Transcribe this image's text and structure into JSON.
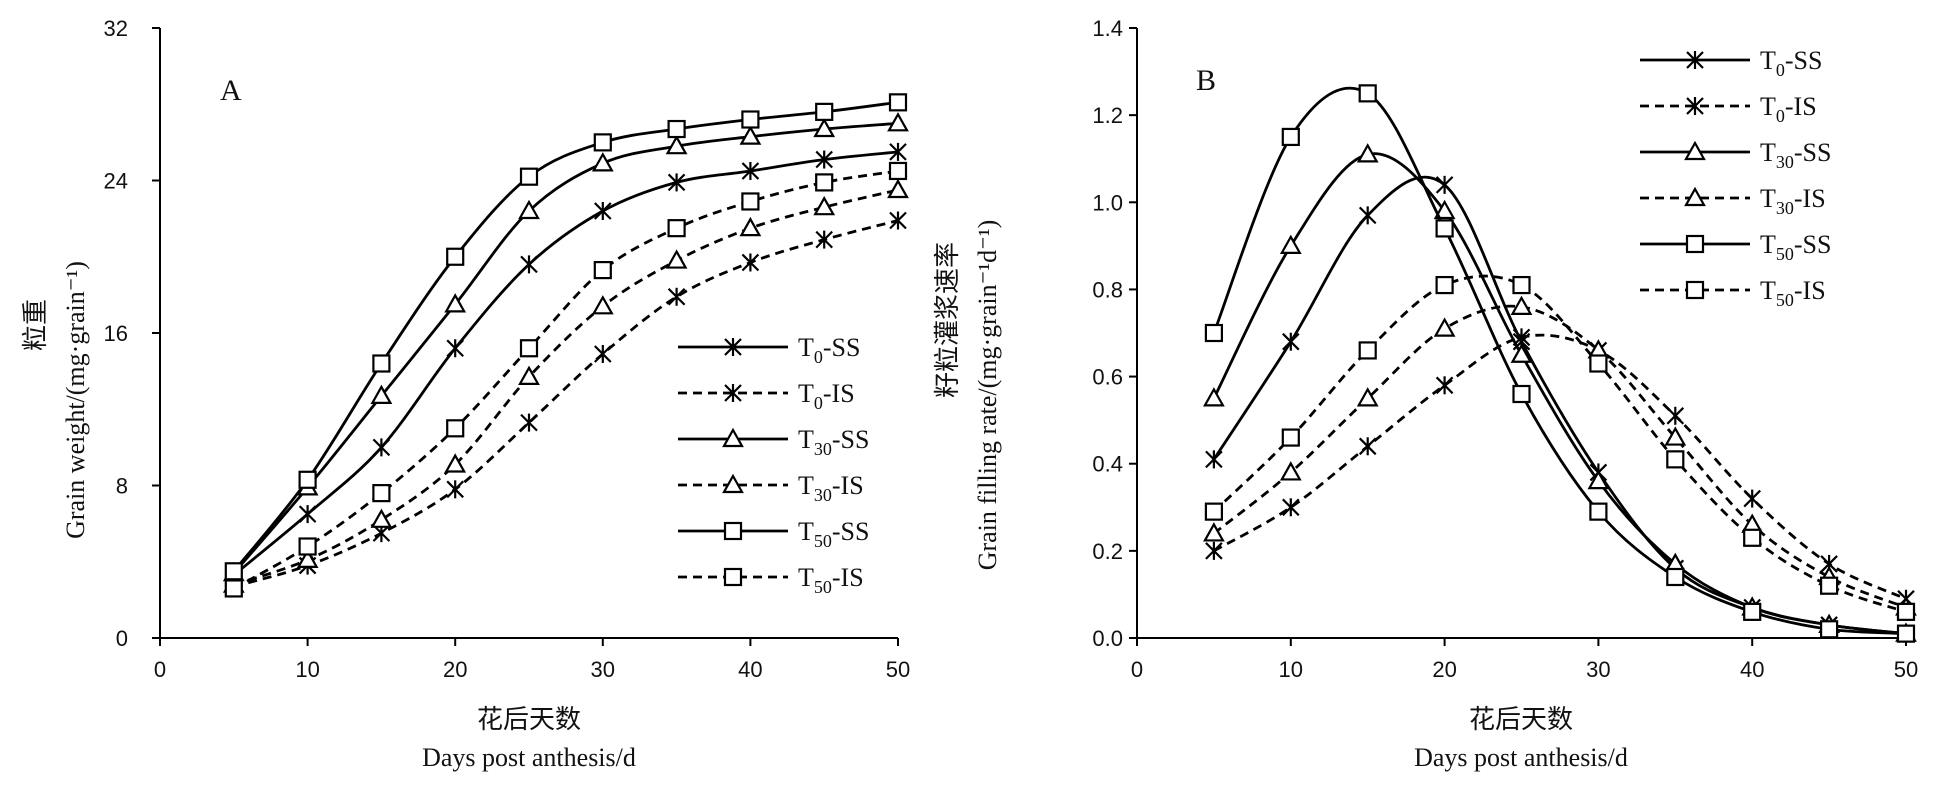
{
  "chart_data": [
    {
      "type": "line",
      "panel_label": "A",
      "xlabel_cn": "花后天数",
      "xlabel": "Days post anthesis/d",
      "ylabel_cn": "粒重",
      "ylabel": "Grain weight/(mg·grain⁻¹)",
      "xlim": [
        0,
        50
      ],
      "ylim": [
        0,
        32
      ],
      "x_ticks": [
        "0",
        "10",
        "20",
        "30",
        "40",
        "50"
      ],
      "y_ticks": [
        "0",
        "8",
        "16",
        "24",
        "32"
      ],
      "grid": false,
      "legend_position": "bottom-right",
      "x": [
        5,
        10,
        15,
        20,
        25,
        30,
        35,
        40,
        45,
        50
      ],
      "series": [
        {
          "name": "T0-SS",
          "name_main": "T",
          "name_sub": "0",
          "name_suffix": "-SS",
          "style": "solid",
          "marker": "asterisk",
          "values": [
            3.3,
            6.5,
            10.0,
            15.2,
            19.6,
            22.4,
            23.9,
            24.5,
            25.1,
            25.5
          ]
        },
        {
          "name": "T0-IS",
          "name_main": "T",
          "name_sub": "0",
          "name_suffix": "-IS",
          "style": "dashed",
          "marker": "asterisk",
          "values": [
            2.7,
            3.8,
            5.5,
            7.8,
            11.3,
            14.9,
            17.9,
            19.7,
            20.9,
            21.9
          ]
        },
        {
          "name": "T30-SS",
          "name_main": "T",
          "name_sub": "30",
          "name_suffix": "-SS",
          "style": "solid",
          "marker": "triangle",
          "values": [
            3.4,
            7.9,
            12.7,
            17.5,
            22.4,
            24.9,
            25.8,
            26.3,
            26.7,
            27.0
          ]
        },
        {
          "name": "T30-IS",
          "name_main": "T",
          "name_sub": "30",
          "name_suffix": "-IS",
          "style": "dashed",
          "marker": "triangle",
          "values": [
            2.8,
            4.1,
            6.2,
            9.1,
            13.7,
            17.4,
            19.8,
            21.5,
            22.6,
            23.5
          ]
        },
        {
          "name": "T50-SS",
          "name_main": "T",
          "name_sub": "50",
          "name_suffix": "-SS",
          "style": "solid",
          "marker": "square",
          "values": [
            3.5,
            8.3,
            14.4,
            20.0,
            24.2,
            26.0,
            26.7,
            27.2,
            27.6,
            28.1
          ]
        },
        {
          "name": "T50-IS",
          "name_main": "T",
          "name_sub": "50",
          "name_suffix": "-IS",
          "style": "dashed",
          "marker": "square",
          "values": [
            2.6,
            4.8,
            7.6,
            11.0,
            15.2,
            19.3,
            21.5,
            22.9,
            23.9,
            24.5
          ]
        }
      ]
    },
    {
      "type": "line",
      "panel_label": "B",
      "xlabel_cn": "花后天数",
      "xlabel": "Days post anthesis/d",
      "ylabel_cn": "籽粒灌浆速率",
      "ylabel": "Grain filling rate/(mg·grain⁻¹d⁻¹)",
      "xlim": [
        0,
        50
      ],
      "ylim": [
        0,
        1.4
      ],
      "x_ticks": [
        "0",
        "10",
        "20",
        "30",
        "40",
        "50"
      ],
      "y_ticks": [
        "0.0",
        "0.2",
        "0.4",
        "0.6",
        "0.8",
        "1.0",
        "1.2",
        "1.4"
      ],
      "grid": false,
      "legend_position": "top-right",
      "x": [
        5,
        10,
        15,
        20,
        25,
        30,
        35,
        40,
        45,
        50
      ],
      "series": [
        {
          "name": "T0-SS",
          "name_main": "T",
          "name_sub": "0",
          "name_suffix": "-SS",
          "style": "solid",
          "marker": "asterisk",
          "values": [
            0.41,
            0.68,
            0.97,
            1.04,
            0.68,
            0.38,
            0.16,
            0.07,
            0.03,
            0.01
          ]
        },
        {
          "name": "T0-IS",
          "name_main": "T",
          "name_sub": "0",
          "name_suffix": "-IS",
          "style": "dashed",
          "marker": "asterisk",
          "values": [
            0.2,
            0.3,
            0.44,
            0.58,
            0.69,
            0.66,
            0.51,
            0.32,
            0.17,
            0.09
          ]
        },
        {
          "name": "T30-SS",
          "name_main": "T",
          "name_sub": "30",
          "name_suffix": "-SS",
          "style": "solid",
          "marker": "triangle",
          "values": [
            0.55,
            0.9,
            1.11,
            0.98,
            0.65,
            0.36,
            0.17,
            0.07,
            0.03,
            0.01
          ]
        },
        {
          "name": "T30-IS",
          "name_main": "T",
          "name_sub": "30",
          "name_suffix": "-IS",
          "style": "dashed",
          "marker": "triangle",
          "values": [
            0.24,
            0.38,
            0.55,
            0.71,
            0.76,
            0.66,
            0.46,
            0.26,
            0.14,
            0.07
          ]
        },
        {
          "name": "T50-SS",
          "name_main": "T",
          "name_sub": "50",
          "name_suffix": "-SS",
          "style": "solid",
          "marker": "square",
          "values": [
            0.7,
            1.15,
            1.25,
            0.94,
            0.56,
            0.29,
            0.14,
            0.06,
            0.02,
            0.01
          ]
        },
        {
          "name": "T50-IS",
          "name_main": "T",
          "name_sub": "50",
          "name_suffix": "-IS",
          "style": "dashed",
          "marker": "square",
          "values": [
            0.29,
            0.46,
            0.66,
            0.81,
            0.81,
            0.63,
            0.41,
            0.23,
            0.12,
            0.06
          ]
        }
      ]
    }
  ]
}
